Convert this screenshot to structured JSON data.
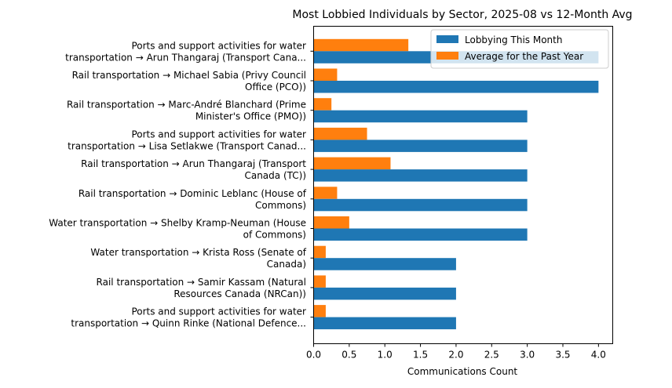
{
  "chart_data": {
    "type": "bar",
    "orientation": "horizontal",
    "title": "Most Lobbied Individuals by Sector, 2025-08 vs 12-Month Avg",
    "xlabel": "Communications Count",
    "ylabel": "",
    "xlim": [
      0,
      4.2
    ],
    "xticks": [
      "0.0",
      "0.5",
      "1.0",
      "1.5",
      "2.0",
      "2.5",
      "3.0",
      "3.5",
      "4.0"
    ],
    "grid": false,
    "legend_position": "top-right",
    "categories": [
      [
        "Ports and support activities for water",
        "transportation → Arun Thangaraj (Transport Cana..."
      ],
      [
        "Rail transportation → Michael Sabia (Privy Council",
        "Office (PCO))"
      ],
      [
        "Rail transportation → Marc-André Blanchard (Prime",
        "Minister's Office (PMO))"
      ],
      [
        "Ports and support activities for water",
        "transportation → Lisa Setlakwe (Transport Canad..."
      ],
      [
        "Rail transportation → Arun Thangaraj (Transport",
        "Canada (TC))"
      ],
      [
        "Rail transportation → Dominic Leblanc (House of",
        "Commons)"
      ],
      [
        "Water transportation → Shelby Kramp-Neuman (House",
        "of Commons)"
      ],
      [
        "Water transportation → Krista Ross (Senate of",
        "Canada)"
      ],
      [
        "Rail transportation → Samir Kassam (Natural",
        "Resources Canada (NRCan))"
      ],
      [
        "Ports and support activities for water",
        "transportation → Quinn Rinke (National Defence..."
      ]
    ],
    "series": [
      {
        "name": "Lobbying This Month",
        "color": "#1f77b4",
        "values": [
          4,
          4,
          3,
          3,
          3,
          3,
          3,
          2,
          2,
          2
        ]
      },
      {
        "name": "Average for the Past Year",
        "color": "#ff7f0e",
        "values": [
          1.33,
          0.33,
          0.25,
          0.75,
          1.08,
          0.33,
          0.5,
          0.17,
          0.17,
          0.17
        ]
      }
    ]
  }
}
